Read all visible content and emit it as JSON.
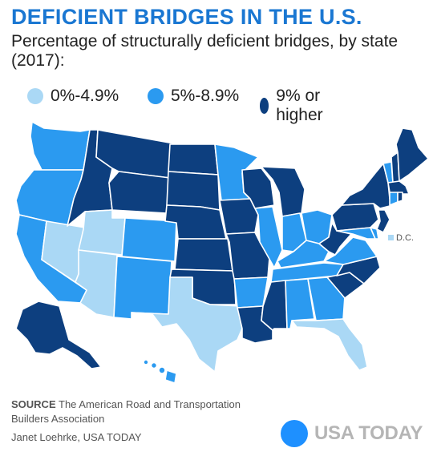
{
  "title": "DEFICIENT BRIDGES IN THE U.S.",
  "subtitle": "Percentage of structurally deficient bridges, by state (2017):",
  "legend": [
    {
      "label": "0%-4.9%",
      "color": "#aad8f5"
    },
    {
      "label": "5%-8.9%",
      "color": "#2b9af0"
    },
    {
      "label": "9% or higher",
      "color": "#0d3f7f"
    }
  ],
  "colors": {
    "low": "#aad8f5",
    "mid": "#2b9af0",
    "high": "#0d3f7f",
    "title": "#1a77d2"
  },
  "map": {
    "dc_label": "D.C.",
    "states": {
      "WA": "mid",
      "OR": "mid",
      "CA": "mid",
      "NV": "low",
      "ID": "high",
      "MT": "high",
      "WY": "high",
      "UT": "low",
      "AZ": "low",
      "CO": "mid",
      "NM": "mid",
      "ND": "high",
      "SD": "high",
      "NE": "high",
      "KS": "high",
      "OK": "high",
      "TX": "low",
      "MN": "mid",
      "IA": "high",
      "MO": "high",
      "AR": "mid",
      "LA": "high",
      "WI": "high",
      "IL": "mid",
      "MI": "high",
      "IN": "mid",
      "OH": "mid",
      "KY": "mid",
      "TN": "mid",
      "MS": "high",
      "AL": "mid",
      "GA": "mid",
      "FL": "low",
      "SC": "high",
      "NC": "high",
      "VA": "mid",
      "WV": "high",
      "PA": "high",
      "NY": "high",
      "VT": "mid",
      "NH": "high",
      "ME": "high",
      "MA": "high",
      "CT": "mid",
      "RI": "high",
      "NJ": "high",
      "DE": "mid",
      "MD": "mid",
      "DC": "low",
      "AK": "high",
      "HI": "mid"
    }
  },
  "source": {
    "label": "SOURCE",
    "text": "The American Road and Transportation Builders Association"
  },
  "credit": "Janet Loehrke, USA TODAY",
  "logo": {
    "text": "USA TODAY"
  }
}
